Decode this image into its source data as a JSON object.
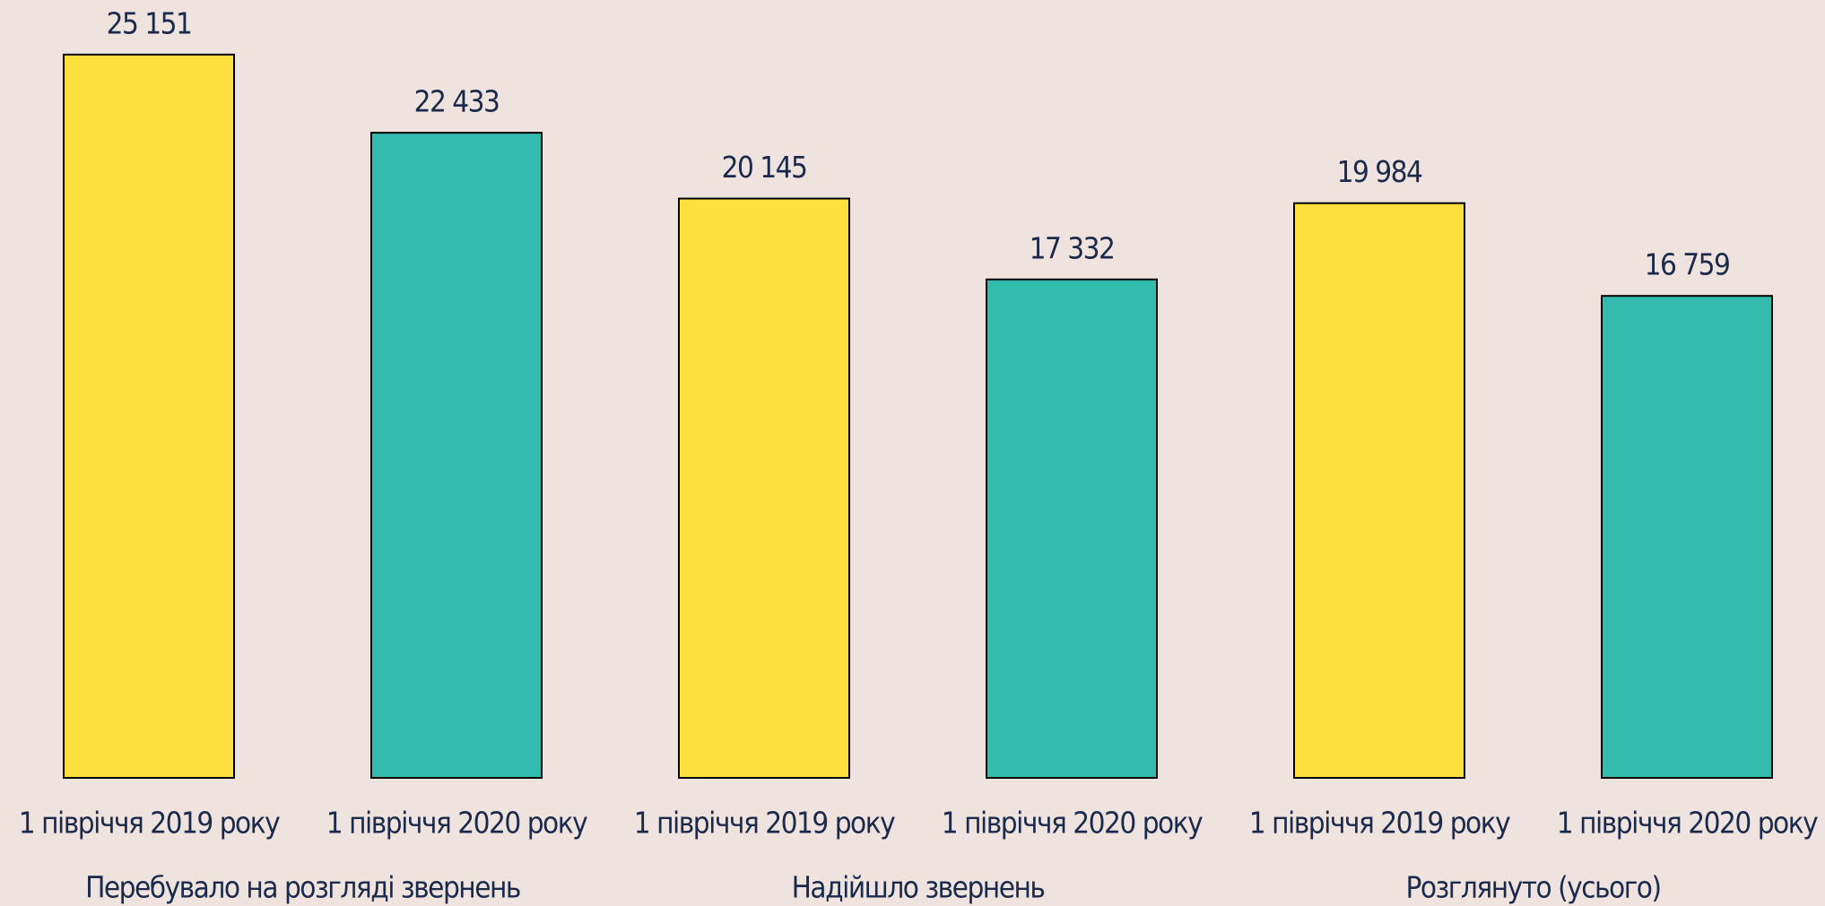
{
  "chart_data": {
    "type": "bar",
    "categories": [
      "Перебувало на розгляді звернень",
      "Надійшло звернень",
      "Розглянуто (усього)"
    ],
    "series": [
      {
        "name": "1 півріччя 2019 року",
        "color": "#fddf3d",
        "values": [
          25151,
          20145,
          19984
        ],
        "value_labels": [
          "25 151",
          "20 145",
          "19 984"
        ]
      },
      {
        "name": "1 півріччя 2020 року",
        "color": "#33bcad",
        "values": [
          22433,
          17332,
          16759
        ],
        "value_labels": [
          "22 433",
          "17 332",
          "16 759"
        ]
      }
    ]
  }
}
